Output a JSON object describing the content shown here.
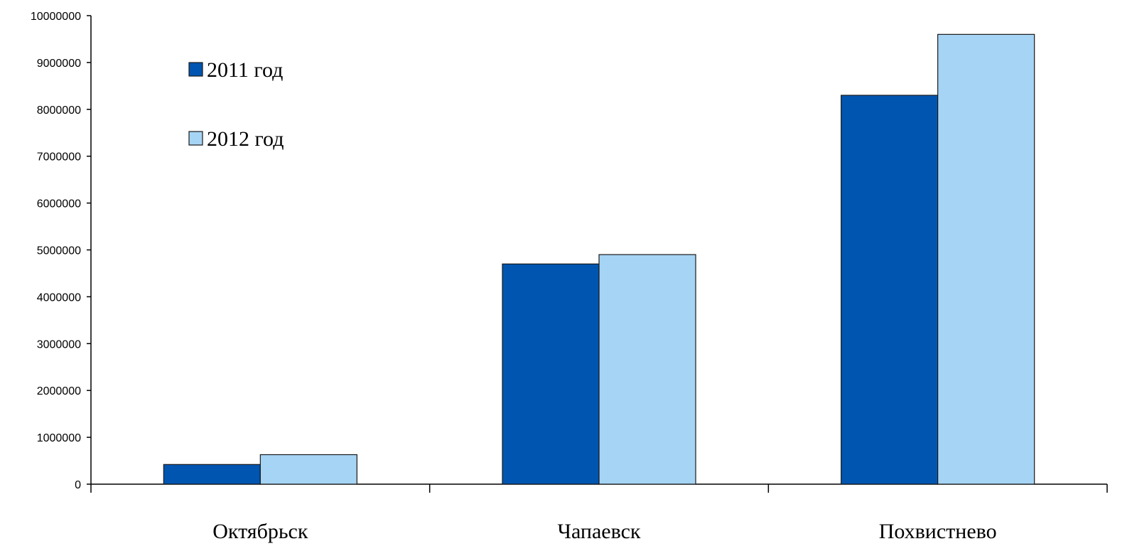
{
  "chart_data": {
    "type": "bar",
    "categories": [
      "Октябрьск",
      "Чапаевск",
      "Похвистнево"
    ],
    "series": [
      {
        "name": "2011 год",
        "color": "#0055b0",
        "values": [
          420000,
          4700000,
          8300000
        ]
      },
      {
        "name": "2012 год",
        "color": "#a6d4f4",
        "values": [
          630000,
          4900000,
          9600000
        ]
      }
    ],
    "title": "",
    "xlabel": "",
    "ylabel": "",
    "ylim": [
      0,
      10000000
    ],
    "yticks": [
      "0",
      "1000000",
      "2000000",
      "3000000",
      "4000000",
      "5000000",
      "6000000",
      "7000000",
      "8000000",
      "9000000",
      "10000000"
    ],
    "grid": false,
    "legend": "top-left"
  }
}
